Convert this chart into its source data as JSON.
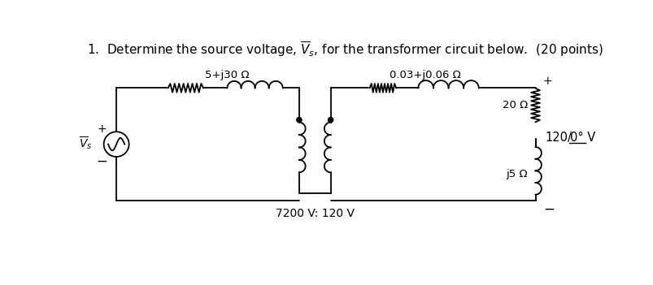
{
  "title": "1.  Determine the source voltage, $\\overline{V}_s$, for the transformer circuit below.  (20 points)",
  "title_fontsize": 11,
  "fig_bg": "#ffffff",
  "label_z1": "5+j30 Ω",
  "label_z2": "0.03+j0.06 Ω",
  "label_z3": "20 Ω",
  "label_z4": "j5 Ω",
  "label_vs": "$\\overline{V}_s$",
  "label_vload": "120/\u00050° V",
  "label_turns": "7200 V: 120 V",
  "label_plus_left": "+",
  "label_minus_left": "−",
  "label_plus_right": "+",
  "label_minus_right": "−"
}
